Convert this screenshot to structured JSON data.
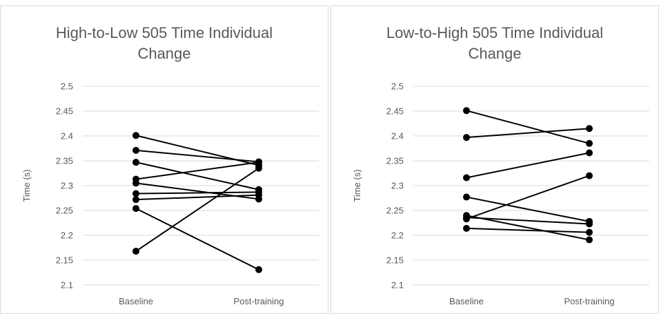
{
  "chart_data": [
    {
      "type": "line",
      "title_lines": [
        "High-to-Low 505 Time Individual",
        "Change"
      ],
      "ylabel": "Time (s)",
      "xlabel": "",
      "categories": [
        "Baseline",
        "Post-training"
      ],
      "ylim": [
        2.1,
        2.5
      ],
      "yticks": [
        "2.1",
        "2.15",
        "2.2",
        "2.25",
        "2.3",
        "2.35",
        "2.4",
        "2.45",
        "2.5"
      ],
      "grid": true,
      "legend": "none",
      "line_color": "#000000",
      "series": [
        {
          "values": [
            2.401,
            2.341
          ]
        },
        {
          "values": [
            2.371,
            2.348
          ]
        },
        {
          "values": [
            2.347,
            2.292
          ]
        },
        {
          "values": [
            2.313,
            2.347
          ]
        },
        {
          "values": [
            2.305,
            2.273
          ]
        },
        {
          "values": [
            2.284,
            2.287
          ]
        },
        {
          "values": [
            2.272,
            2.281
          ]
        },
        {
          "values": [
            2.254,
            2.131
          ]
        },
        {
          "values": [
            2.168,
            2.335
          ]
        }
      ]
    },
    {
      "type": "line",
      "title_lines": [
        "Low-to-High 505 Time Individual",
        "Change"
      ],
      "ylabel": "Time (s)",
      "xlabel": "",
      "categories": [
        "Baseline",
        "Post-training"
      ],
      "ylim": [
        2.1,
        2.5
      ],
      "yticks": [
        "2.1",
        "2.15",
        "2.2",
        "2.25",
        "2.3",
        "2.35",
        "2.4",
        "2.45",
        "2.5"
      ],
      "grid": true,
      "legend": "none",
      "line_color": "#000000",
      "series": [
        {
          "values": [
            2.451,
            2.385
          ]
        },
        {
          "values": [
            2.397,
            2.415
          ]
        },
        {
          "values": [
            2.316,
            2.366
          ]
        },
        {
          "values": [
            2.277,
            2.228
          ]
        },
        {
          "values": [
            2.24,
            2.191
          ]
        },
        {
          "values": [
            2.236,
            2.223
          ]
        },
        {
          "values": [
            2.233,
            2.32
          ]
        },
        {
          "values": [
            2.214,
            2.206
          ]
        }
      ]
    }
  ]
}
